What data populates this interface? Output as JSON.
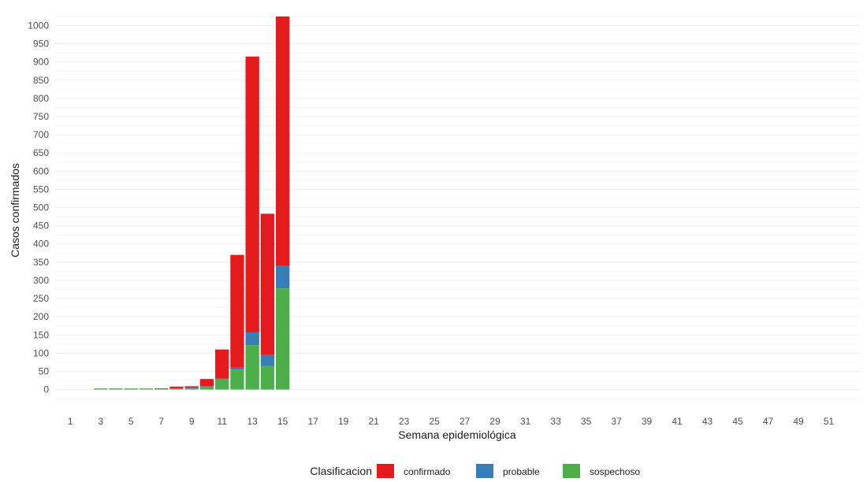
{
  "chart_data": {
    "type": "bar",
    "stacked": true,
    "xlabel": "Semana epidemiológica",
    "ylabel": "Casos confirmados",
    "xlim": [
      0,
      53
    ],
    "ylim": [
      -55,
      1040
    ],
    "x_ticks": [
      1,
      3,
      5,
      7,
      9,
      11,
      13,
      15,
      17,
      19,
      21,
      23,
      25,
      27,
      29,
      31,
      33,
      35,
      37,
      39,
      41,
      43,
      45,
      47,
      49,
      51
    ],
    "y_ticks": [
      0,
      50,
      100,
      150,
      200,
      250,
      300,
      350,
      400,
      450,
      500,
      550,
      600,
      650,
      700,
      750,
      800,
      850,
      900,
      950,
      1000
    ],
    "grid": true,
    "legend": {
      "title": "Clasificacion",
      "position": "bottom"
    },
    "x": [
      3,
      4,
      5,
      6,
      7,
      8,
      9,
      10,
      11,
      12,
      13,
      14,
      15
    ],
    "series": [
      {
        "name": "sospechoso",
        "color": "#4daf4a",
        "values": [
          3,
          3,
          3,
          3,
          1,
          2,
          3,
          8,
          28,
          55,
          122,
          65,
          278
        ]
      },
      {
        "name": "probable",
        "color": "#377eb8",
        "values": [
          0,
          0,
          0,
          0,
          0,
          1,
          2,
          1,
          2,
          5,
          35,
          30,
          63
        ]
      },
      {
        "name": "confirmado",
        "color": "#e41a1c",
        "values": [
          0,
          0,
          0,
          0,
          2,
          5,
          4,
          20,
          80,
          310,
          758,
          388,
          684
        ]
      }
    ]
  }
}
